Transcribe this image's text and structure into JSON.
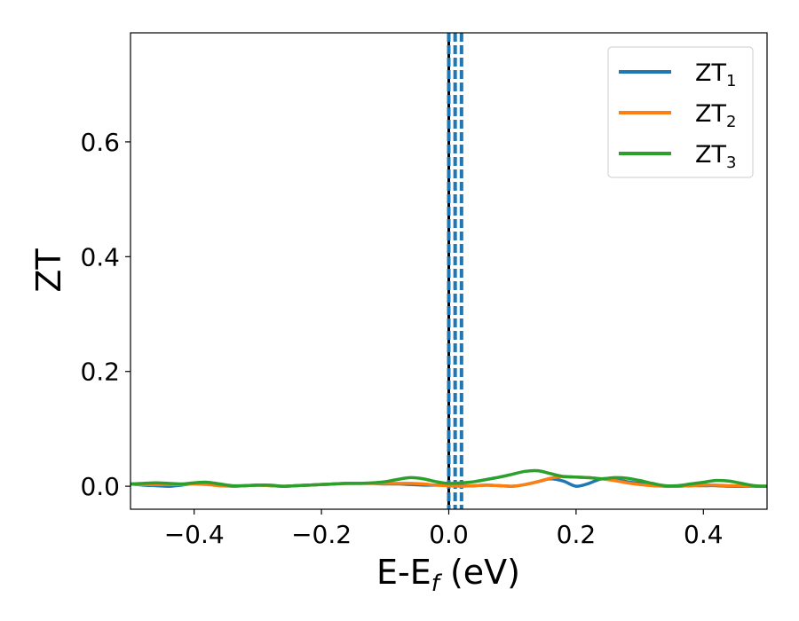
{
  "chart_data": {
    "type": "line",
    "xlabel": {
      "main": "E-E",
      "sub": "f",
      "tail": " (eV)"
    },
    "ylabel": "ZT",
    "xlim": [
      -0.5,
      0.5
    ],
    "ylim": [
      -0.04,
      0.79
    ],
    "xticks": [
      -0.4,
      -0.2,
      0.0,
      0.2,
      0.4
    ],
    "xtick_labels": [
      "−0.4",
      "−0.2",
      "0.0",
      "0.2",
      "0.4"
    ],
    "yticks": [
      0.0,
      0.2,
      0.4,
      0.6
    ],
    "ytick_labels": [
      "0.0",
      "0.2",
      "0.4",
      "0.6"
    ],
    "grid": false,
    "legend_position": "top-right",
    "vlines": [
      {
        "x": 0.0,
        "style": "solid",
        "color": "#000000"
      },
      {
        "x": 0.0,
        "style": "dashed",
        "color": "#1f77b4"
      },
      {
        "x": 0.01,
        "style": "dashed",
        "color": "#1f77b4"
      },
      {
        "x": 0.02,
        "style": "dashed",
        "color": "#1f77b4"
      }
    ],
    "series": [
      {
        "name": "ZT",
        "sub": "1",
        "color": "#1f77b4",
        "x": [
          -0.5,
          -0.48,
          -0.46,
          -0.44,
          -0.42,
          -0.4,
          -0.38,
          -0.36,
          -0.34,
          -0.32,
          -0.3,
          -0.28,
          -0.26,
          -0.24,
          -0.22,
          -0.2,
          -0.18,
          -0.16,
          -0.14,
          -0.12,
          -0.1,
          -0.08,
          -0.06,
          -0.04,
          -0.02,
          0.0,
          0.02,
          0.04,
          0.06,
          0.08,
          0.1,
          0.12,
          0.14,
          0.16,
          0.18,
          0.2,
          0.22,
          0.24,
          0.26,
          0.28,
          0.3,
          0.32,
          0.34,
          0.36,
          0.38,
          0.4,
          0.42,
          0.44,
          0.46,
          0.48,
          0.5
        ],
        "y": [
          0.004,
          0.002,
          0.001,
          0.0,
          0.002,
          0.005,
          0.004,
          0.002,
          0.0,
          0.001,
          0.002,
          0.001,
          0.0,
          0.001,
          0.002,
          0.003,
          0.004,
          0.005,
          0.005,
          0.005,
          0.004,
          0.004,
          0.003,
          0.002,
          0.002,
          0.002,
          0.001,
          0.001,
          0.002,
          0.001,
          0.0,
          0.003,
          0.008,
          0.013,
          0.009,
          0.0,
          0.005,
          0.013,
          0.012,
          0.008,
          0.005,
          0.003,
          0.0,
          0.0,
          0.001,
          0.001,
          0.001,
          0.0,
          0.0,
          0.0,
          0.0
        ]
      },
      {
        "name": "ZT",
        "sub": "2",
        "color": "#ff7f0e",
        "x": [
          -0.5,
          -0.48,
          -0.46,
          -0.44,
          -0.42,
          -0.4,
          -0.38,
          -0.36,
          -0.34,
          -0.32,
          -0.3,
          -0.28,
          -0.26,
          -0.24,
          -0.22,
          -0.2,
          -0.18,
          -0.16,
          -0.14,
          -0.12,
          -0.1,
          -0.08,
          -0.06,
          -0.04,
          -0.02,
          0.0,
          0.02,
          0.04,
          0.06,
          0.08,
          0.1,
          0.12,
          0.14,
          0.16,
          0.18,
          0.2,
          0.22,
          0.24,
          0.26,
          0.28,
          0.3,
          0.32,
          0.34,
          0.36,
          0.38,
          0.4,
          0.42,
          0.44,
          0.46,
          0.48,
          0.5
        ],
        "y": [
          0.004,
          0.003,
          0.003,
          0.003,
          0.003,
          0.004,
          0.003,
          0.001,
          0.0,
          0.001,
          0.002,
          0.001,
          0.0,
          0.001,
          0.002,
          0.003,
          0.004,
          0.005,
          0.005,
          0.005,
          0.005,
          0.005,
          0.005,
          0.004,
          0.002,
          0.001,
          0.0,
          0.001,
          0.002,
          0.001,
          0.0,
          0.003,
          0.008,
          0.014,
          0.017,
          0.016,
          0.015,
          0.013,
          0.01,
          0.006,
          0.003,
          0.001,
          0.0,
          0.0,
          0.001,
          0.002,
          0.002,
          0.001,
          0.001,
          0.0,
          0.0
        ]
      },
      {
        "name": "ZT",
        "sub": "3",
        "color": "#2ca02c",
        "x": [
          -0.5,
          -0.48,
          -0.46,
          -0.44,
          -0.42,
          -0.4,
          -0.38,
          -0.36,
          -0.34,
          -0.32,
          -0.3,
          -0.28,
          -0.26,
          -0.24,
          -0.22,
          -0.2,
          -0.18,
          -0.16,
          -0.14,
          -0.12,
          -0.1,
          -0.08,
          -0.06,
          -0.04,
          -0.02,
          0.0,
          0.02,
          0.04,
          0.06,
          0.08,
          0.1,
          0.12,
          0.14,
          0.16,
          0.18,
          0.2,
          0.22,
          0.24,
          0.26,
          0.28,
          0.3,
          0.32,
          0.34,
          0.36,
          0.38,
          0.4,
          0.42,
          0.44,
          0.46,
          0.48,
          0.5
        ],
        "y": [
          0.004,
          0.005,
          0.006,
          0.005,
          0.004,
          0.006,
          0.007,
          0.004,
          0.001,
          0.001,
          0.002,
          0.002,
          0.0,
          0.001,
          0.002,
          0.003,
          0.004,
          0.005,
          0.005,
          0.006,
          0.008,
          0.012,
          0.015,
          0.013,
          0.008,
          0.005,
          0.006,
          0.008,
          0.012,
          0.016,
          0.021,
          0.026,
          0.027,
          0.022,
          0.017,
          0.016,
          0.015,
          0.013,
          0.015,
          0.014,
          0.01,
          0.005,
          0.001,
          0.001,
          0.004,
          0.007,
          0.01,
          0.009,
          0.005,
          0.001,
          0.0
        ]
      }
    ]
  }
}
